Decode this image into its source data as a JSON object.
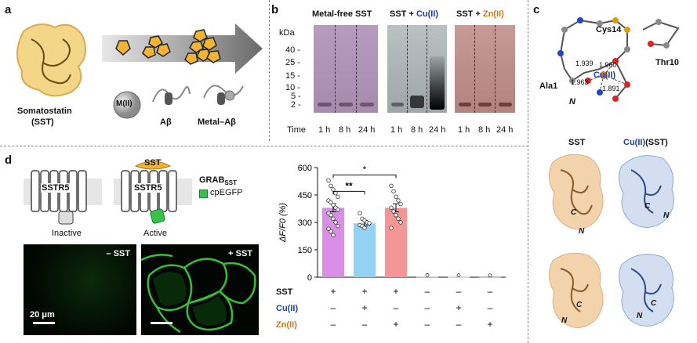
{
  "panel_a": {
    "label": "a",
    "sst_label_1": "Somatostatin",
    "sst_label_2": "(SST)",
    "metal_label": "M(II)",
    "abeta_label": "Aβ",
    "metal_abeta_label": "Metal–Aβ"
  },
  "panel_b": {
    "label": "b",
    "kda_label": "kDa",
    "markers": [
      "40 -",
      "25 -",
      "15 -",
      "10 -",
      "5 -",
      "2 -"
    ],
    "conditions": [
      {
        "prefix": "Metal-free SST",
        "suffix": ""
      },
      {
        "prefix": "SST + ",
        "suffix": "Cu(II)"
      },
      {
        "prefix": "SST + ",
        "suffix": "Zn(II)"
      }
    ],
    "time_label": "Time",
    "times": [
      "1 h",
      "8 h",
      "24 h"
    ],
    "colors": {
      "metal_free": "#ad94b6",
      "cu": "#a7b0b3",
      "zn": "#b88f8b"
    }
  },
  "panel_c": {
    "label": "c",
    "residues": [
      "Cys14",
      "Thr10",
      "Ala1",
      "N"
    ],
    "metal": "Cu(II)",
    "distances": [
      "1.939",
      "1.960",
      "1.963",
      "1.891"
    ],
    "title_sst": "SST",
    "title_cu_metal": "Cu(II)",
    "title_cu_rest": "(SST)",
    "termini": [
      "C",
      "N"
    ]
  },
  "panel_d": {
    "label": "d",
    "receptor": "SSTR5",
    "ligand": "SST",
    "inactive_label": "Inactive",
    "active_label": "Active",
    "sensor_label": "GRAB",
    "sensor_sub": "SST",
    "fluor_label": "cpEGFP",
    "micro_minus": "– SST",
    "micro_plus": "+ SST",
    "scale_label": "20 μm"
  },
  "chart_data": {
    "type": "bar",
    "ylabel": "ΔF/F0 (%)",
    "ylim": [
      0,
      600
    ],
    "yticks": [
      "0",
      "150",
      "300",
      "450",
      "600"
    ],
    "groups": [
      "1",
      "2",
      "3",
      "4",
      "5",
      "6"
    ],
    "values": [
      380,
      295,
      380,
      3,
      2,
      1
    ],
    "errors": [
      22,
      15,
      22,
      0,
      0,
      0
    ],
    "bar_colors": [
      "#d98fe5",
      "#93d2f2",
      "#f49696",
      "#bbbbbb",
      "#bbbbbb",
      "#bbbbbb"
    ],
    "condition_rows": [
      {
        "name": "SST",
        "color": "#111111",
        "signs": [
          "+",
          "+",
          "+",
          "–",
          "–",
          "–"
        ]
      },
      {
        "name": "Cu(II)",
        "color": "#1c3fa8",
        "signs": [
          "–",
          "+",
          "–",
          "–",
          "+",
          "–"
        ]
      },
      {
        "name": "Zn(II)",
        "color": "#c9771b",
        "signs": [
          "–",
          "–",
          "+",
          "–",
          "–",
          "+"
        ]
      }
    ],
    "significance": [
      "*",
      "**"
    ],
    "points": [
      [
        530,
        500,
        480,
        460,
        440,
        420,
        410,
        395,
        380,
        370,
        350,
        340,
        320,
        300,
        280,
        265,
        250,
        230
      ],
      [
        350,
        320,
        310,
        300,
        295,
        285,
        280,
        270
      ],
      [
        500,
        470,
        440,
        420,
        400,
        380,
        360,
        340,
        320,
        300,
        270
      ]
    ]
  }
}
